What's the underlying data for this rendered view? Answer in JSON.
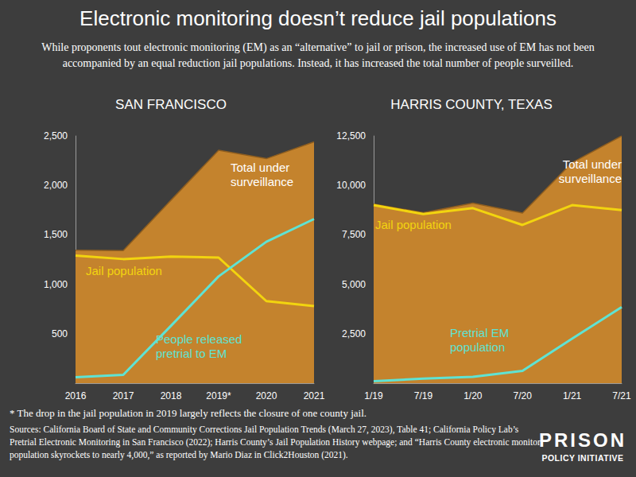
{
  "title": "Electronic monitoring doesn’t reduce jail populations",
  "subtitle": "While proponents tout electronic monitoring (EM) as an “alternative” to jail or prison, the increased use of EM has not been accompanied by an equal reduction jail populations. Instead, it has increased the total number of people surveilled.",
  "footnote": "* The drop in the jail population in 2019 largely reflects the closure of one county jail.",
  "sources": "Sources: California Board of State and Community Corrections Jail Population Trends (March 27, 2023), Table 41; California Policy Lab’s Pretrial Electronic Monitoring in San Francisco (2022); Harris County’s Jail Population History webpage; and “Harris County electronic monitor population skyrockets to nearly 4,000,” as reported by Mario Diaz in Click2Houston (2021).",
  "logo": [
    "PRISON",
    "POLICY INITIATIVE"
  ],
  "chart_data": [
    {
      "type": "line",
      "title": "SAN FRANCISCO",
      "categories": [
        "2016",
        "2017",
        "2018",
        "2019*",
        "2020",
        "2021"
      ],
      "series": [
        {
          "name": "Total under surveillance",
          "type": "area",
          "color": "#c4832d",
          "values": [
            1345,
            1340,
            1850,
            2355,
            2270,
            2440
          ]
        },
        {
          "name": "Jail population",
          "type": "line",
          "color": "#f2d40f",
          "values": [
            1290,
            1255,
            1280,
            1270,
            830,
            780
          ]
        },
        {
          "name": "People released pretrial to EM",
          "type": "line",
          "color": "#5fe3d3",
          "values": [
            60,
            85,
            580,
            1080,
            1430,
            1660
          ]
        }
      ],
      "ylim": [
        0,
        2500
      ],
      "yticks": [
        500,
        {
          "value": 1000,
          "label": "1,000"
        },
        {
          "value": 1500,
          "label": "1,500"
        },
        {
          "value": 2000,
          "label": "2,000"
        },
        {
          "value": 2500,
          "label": "2,500"
        }
      ],
      "grid": false
    },
    {
      "type": "line",
      "title": "HARRIS COUNTY, TEXAS",
      "categories": [
        "1/19",
        "7/19",
        "1/20",
        "7/20",
        "1/21",
        "7/21"
      ],
      "series": [
        {
          "name": "Total under surveillance",
          "type": "area",
          "color": "#c4832d",
          "values": [
            9050,
            8620,
            9100,
            8600,
            11150,
            12500
          ]
        },
        {
          "name": "Jail population",
          "type": "line",
          "color": "#f2d40f",
          "values": [
            9000,
            8550,
            8850,
            8000,
            9000,
            8750
          ]
        },
        {
          "name": "Pretrial EM population",
          "type": "line",
          "color": "#5fe3d3",
          "values": [
            100,
            230,
            320,
            620,
            2250,
            3850
          ]
        }
      ],
      "ylim": [
        0,
        12500
      ],
      "yticks": [
        {
          "value": 2500,
          "label": "2,500"
        },
        {
          "value": 5000,
          "label": "5,000"
        },
        {
          "value": 7500,
          "label": "7,500"
        },
        {
          "value": 10000,
          "label": "10,000"
        },
        {
          "value": 12500,
          "label": "12,500"
        }
      ],
      "grid": false
    }
  ]
}
